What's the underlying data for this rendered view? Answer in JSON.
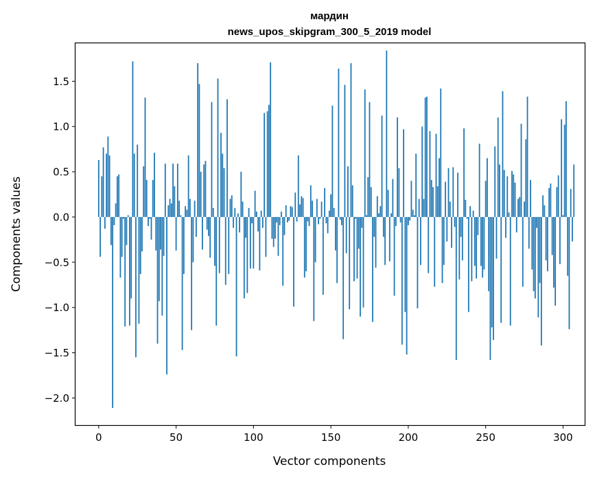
{
  "chart_data": {
    "type": "bar",
    "title": "мардин",
    "subtitle": "news_upos_skipgram_300_5_2019 model",
    "xlabel": "Vector components",
    "ylabel": "Components values",
    "xlim": [
      -15,
      314
    ],
    "ylim": [
      -2.3,
      1.92
    ],
    "xticks": [
      0,
      50,
      100,
      150,
      200,
      250,
      300
    ],
    "yticks": [
      -2.0,
      -1.5,
      -1.0,
      -0.5,
      0.0,
      0.5,
      1.0,
      1.5
    ],
    "xtick_labels": [
      "0",
      "50",
      "100",
      "150",
      "200",
      "250",
      "300"
    ],
    "ytick_labels": [
      "−2.0",
      "−1.5",
      "−1.0",
      "−0.5",
      "0.0",
      "0.5",
      "1.0",
      "1.5"
    ],
    "color": "#1f77b4",
    "grid": false,
    "values": [
      0.63,
      -0.44,
      0.45,
      0.77,
      -0.13,
      0.7,
      0.89,
      0.68,
      -0.31,
      -2.11,
      -0.09,
      0.15,
      0.45,
      0.47,
      -0.67,
      -0.44,
      -0.02,
      -1.21,
      -0.31,
      0.02,
      -1.2,
      -0.9,
      1.72,
      0.7,
      -1.55,
      0.8,
      -1.18,
      -0.63,
      -0.38,
      0.56,
      1.32,
      0.41,
      -0.1,
      -0.02,
      -0.25,
      0.41,
      0.71,
      -0.37,
      -1.4,
      -0.93,
      -0.36,
      -1.09,
      -0.43,
      0.59,
      -1.74,
      0.13,
      0.2,
      0.15,
      0.59,
      0.34,
      -0.37,
      0.59,
      0.18,
      0.02,
      -1.47,
      -0.63,
      0.12,
      0.08,
      0.68,
      0.2,
      -1.25,
      -0.5,
      0.18,
      -0.22,
      1.7,
      1.47,
      0.5,
      -0.36,
      0.58,
      0.62,
      -0.14,
      -0.21,
      -0.45,
      1.27,
      0.1,
      -0.54,
      -1.2,
      1.53,
      -0.62,
      0.93,
      0.7,
      0.54,
      -0.75,
      1.3,
      -0.63,
      0.2,
      0.24,
      -0.12,
      0.1,
      -1.54,
      0.04,
      -0.17,
      0.5,
      0.17,
      -0.9,
      -0.23,
      -0.84,
      0.1,
      -0.57,
      -0.07,
      -0.57,
      0.29,
      0.06,
      -0.16,
      -0.59,
      0.07,
      -0.12,
      1.15,
      -0.44,
      1.17,
      1.24,
      1.71,
      -0.24,
      -0.33,
      -0.24,
      -0.06,
      -0.43,
      -0.09,
      0.06,
      -0.76,
      -0.2,
      0.13,
      -0.06,
      -0.04,
      0.12,
      0.11,
      -0.99,
      0.27,
      -0.05,
      0.68,
      0.14,
      0.23,
      0.21,
      -0.67,
      -0.6,
      -0.05,
      -0.1,
      0.35,
      0.18,
      -1.15,
      -0.5,
      0.2,
      -0.08,
      -0.02,
      0.17,
      -0.86,
      0.32,
      -0.07,
      -0.18,
      0.07,
      0.25,
      1.23,
      0.1,
      -0.37,
      -0.73,
      1.64,
      -0.03,
      -0.09,
      -1.35,
      1.46,
      -0.4,
      0.56,
      -1.02,
      1.7,
      0.35,
      -0.71,
      -0.02,
      -0.68,
      -0.35,
      -1.1,
      -0.12,
      -1.0,
      1.41,
      0.02,
      0.44,
      1.27,
      0.33,
      -1.16,
      -0.22,
      -0.56,
      0.23,
      0.04,
      0.12,
      1.12,
      -0.22,
      -0.53,
      1.84,
      0.3,
      -0.49,
      0.04,
      0.42,
      -0.87,
      -0.1,
      1.1,
      0.54,
      -0.06,
      -1.41,
      0.97,
      -1.05,
      -1.52,
      -0.09,
      -0.04,
      0.4,
      0.08,
      0.02,
      0.7,
      -1.01,
      0.2,
      -0.53,
      1.0,
      0.2,
      1.32,
      1.33,
      -0.62,
      0.95,
      0.41,
      0.33,
      -0.77,
      0.92,
      0.34,
      0.65,
      1.42,
      -0.73,
      -0.53,
      0.39,
      -0.27,
      0.54,
      0.17,
      -0.34,
      0.55,
      -0.11,
      -1.58,
      0.49,
      -0.69,
      -0.22,
      -0.48,
      0.98,
      0.19,
      -0.02,
      -1.05,
      0.12,
      -0.71,
      0.07,
      -0.54,
      -0.68,
      -0.2,
      0.81,
      -0.54,
      -0.67,
      -0.58,
      0.4,
      0.65,
      -0.82,
      -1.58,
      -1.22,
      -1.36,
      0.78,
      -0.46,
      1.1,
      0.58,
      -1.17,
      1.39,
      0.52,
      -0.23,
      0.45,
      0.05,
      -1.2,
      0.51,
      0.47,
      0.38,
      -0.17,
      0.2,
      0.22,
      1.03,
      -0.77,
      0.17,
      0.86,
      1.33,
      -0.35,
      0.41,
      -0.58,
      -0.82,
      -0.9,
      -0.12,
      -1.11,
      -0.73,
      -1.42,
      0.24,
      0.13,
      -0.48,
      -0.6,
      0.32,
      0.37,
      -0.42,
      -0.78,
      -0.98,
      0.33,
      0.46,
      -0.52,
      1.08,
      0.02,
      1.02,
      1.28,
      -0.65,
      -1.24,
      0.31,
      -0.27,
      0.58
    ]
  }
}
